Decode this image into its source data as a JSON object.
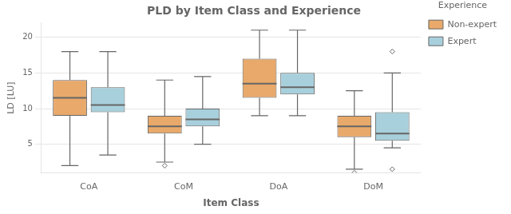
{
  "chart_data": {
    "type": "box",
    "title": "PLD by Item Class and Experience",
    "xlabel": "Item Class",
    "ylabel": "LD [LU]",
    "categories": [
      "CoA",
      "CoM",
      "DoA",
      "DoM"
    ],
    "series": [
      {
        "name": "Non-expert",
        "color": "#E8A96A",
        "values": [
          {
            "whislo": 2.0,
            "q1": 9.0,
            "med": 11.5,
            "q3": 14.0,
            "whishi": 18.0,
            "fliers": []
          },
          {
            "whislo": 2.5,
            "q1": 6.5,
            "med": 7.5,
            "q3": 9.0,
            "whishi": 14.0,
            "fliers": [
              2.0
            ]
          },
          {
            "whislo": 9.0,
            "q1": 11.5,
            "med": 13.5,
            "q3": 17.0,
            "whishi": 21.0,
            "fliers": []
          },
          {
            "whislo": 1.5,
            "q1": 6.0,
            "med": 7.5,
            "q3": 9.0,
            "whishi": 12.5,
            "fliers": [
              1.0
            ]
          }
        ]
      },
      {
        "name": "Expert",
        "color": "#A8D0DC",
        "values": [
          {
            "whislo": 3.5,
            "q1": 9.5,
            "med": 10.5,
            "q3": 13.0,
            "whishi": 18.0,
            "fliers": []
          },
          {
            "whislo": 5.0,
            "q1": 7.5,
            "med": 8.5,
            "q3": 10.0,
            "whishi": 14.5,
            "fliers": []
          },
          {
            "whislo": 9.0,
            "q1": 12.0,
            "med": 13.0,
            "q3": 15.0,
            "whishi": 21.0,
            "fliers": []
          },
          {
            "whislo": 4.5,
            "q1": 5.5,
            "med": 6.5,
            "q3": 9.5,
            "whishi": 15.0,
            "fliers": [
              18.0,
              1.5
            ]
          }
        ]
      }
    ],
    "legend_title": "Experience",
    "legend": "upper right",
    "ylim": [
      1,
      22
    ],
    "yticks": [
      5,
      10,
      15,
      20
    ],
    "grid": true
  }
}
